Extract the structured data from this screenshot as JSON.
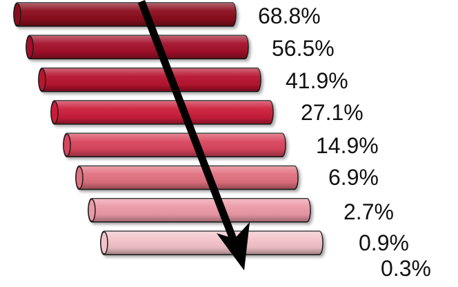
{
  "chart_data": {
    "type": "bar",
    "title": "",
    "xlabel": "",
    "ylabel": "",
    "orientation": "horizontal",
    "style": "3d-cylinder-staircase",
    "labels": [
      "68.8%",
      "56.5%",
      "41.9%",
      "27.1%",
      "14.9%",
      "6.9%",
      "2.7%",
      "0.9%",
      "0.3%"
    ],
    "series": [
      {
        "values": [
          68.8,
          56.5,
          41.9,
          27.1,
          14.9,
          6.9,
          2.7,
          0.9,
          0.3
        ],
        "colors": [
          "#8b0d1e",
          "#a3102a",
          "#b8142f",
          "#cc1f3b",
          "#d9455d",
          "#e1707f",
          "#eb99a6",
          "#f3c3c9",
          ""
        ]
      }
    ],
    "annotations": [
      "downward trend arrow"
    ],
    "grid": false,
    "legend": "none"
  }
}
